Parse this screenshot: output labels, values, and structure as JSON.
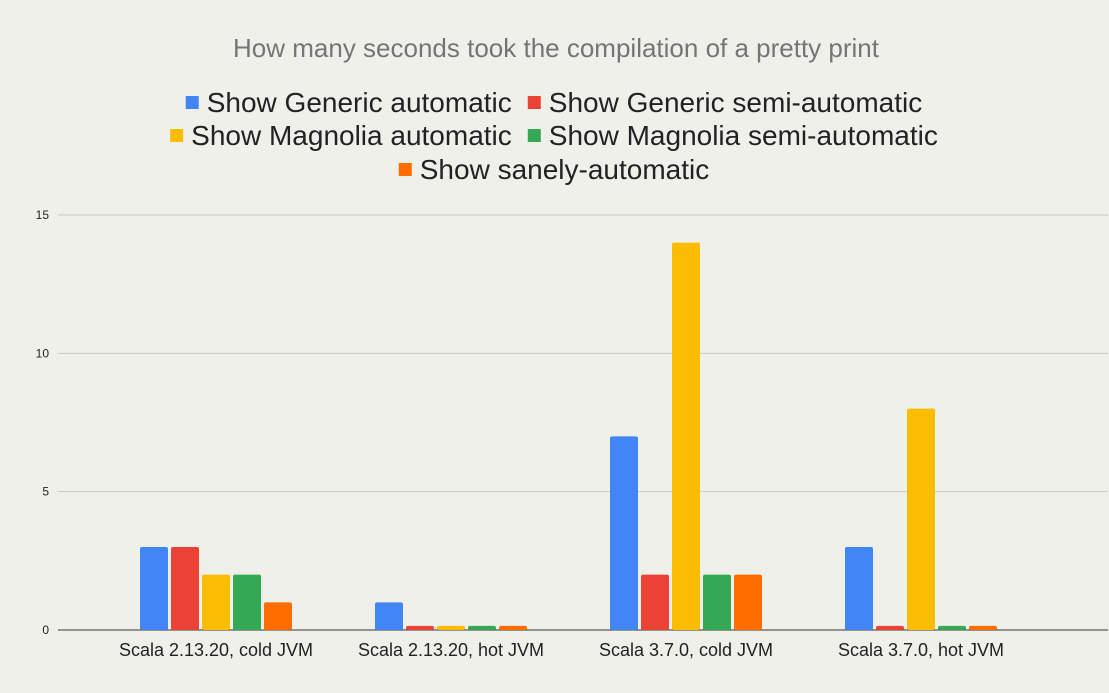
{
  "chart_data": {
    "type": "bar",
    "title": "How many seconds took the compilation of a pretty print",
    "xlabel": "",
    "ylabel": "",
    "ylim": [
      0,
      15
    ],
    "yticks": [
      0,
      5,
      10,
      15
    ],
    "grid": true,
    "legend_position": "top",
    "categories": [
      "Scala 2.13.20, cold JVM",
      "Scala 2.13.20, hot JVM",
      "Scala 3.7.0, cold JVM",
      "Scala 3.7.0, hot JVM"
    ],
    "series": [
      {
        "name": "Show Generic automatic",
        "color": "#4285f4",
        "values": [
          3,
          1,
          7,
          3
        ]
      },
      {
        "name": "Show Generic semi-automatic",
        "color": "#ea4335",
        "values": [
          3,
          0.15,
          2,
          0.15
        ]
      },
      {
        "name": "Show Magnolia automatic",
        "color": "#fbbc04",
        "values": [
          2,
          0.15,
          14,
          8
        ]
      },
      {
        "name": "Show Magnolia semi-automatic",
        "color": "#34a853",
        "values": [
          2,
          0.15,
          2,
          0.15
        ]
      },
      {
        "name": "Show sanely-automatic",
        "color": "#ff6d01",
        "values": [
          1,
          0.15,
          2,
          0.15
        ]
      }
    ]
  }
}
